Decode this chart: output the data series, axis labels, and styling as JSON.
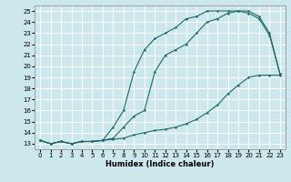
{
  "xlabel": "Humidex (Indice chaleur)",
  "ylabel": "",
  "bg_color": "#cce8ec",
  "grid_color": "#b0d8de",
  "line_color": "#1a6b60",
  "xlim": [
    -0.5,
    23.5
  ],
  "ylim": [
    12.5,
    25.5
  ],
  "xticks": [
    0,
    1,
    2,
    3,
    4,
    5,
    6,
    7,
    8,
    9,
    10,
    11,
    12,
    13,
    14,
    15,
    16,
    17,
    18,
    19,
    20,
    21,
    22,
    23
  ],
  "yticks": [
    13,
    14,
    15,
    16,
    17,
    18,
    19,
    20,
    21,
    22,
    23,
    24,
    25
  ],
  "series1_x": [
    0,
    1,
    2,
    3,
    4,
    5,
    6,
    7,
    8,
    9,
    10,
    11,
    12,
    13,
    14,
    15,
    16,
    17,
    18,
    19,
    20,
    21,
    22,
    23
  ],
  "series1_y": [
    13.3,
    13.0,
    13.2,
    13.0,
    13.2,
    13.2,
    13.3,
    14.5,
    16.0,
    19.5,
    21.5,
    22.5,
    23.0,
    23.5,
    24.3,
    24.5,
    25.0,
    25.0,
    25.0,
    25.0,
    25.0,
    24.5,
    23.0,
    19.3
  ],
  "series2_x": [
    0,
    1,
    2,
    3,
    4,
    5,
    6,
    7,
    8,
    9,
    10,
    11,
    12,
    13,
    14,
    15,
    16,
    17,
    18,
    19,
    20,
    21,
    22,
    23
  ],
  "series2_y": [
    13.3,
    13.0,
    13.2,
    13.0,
    13.2,
    13.2,
    13.3,
    13.5,
    14.5,
    15.5,
    16.0,
    19.5,
    21.0,
    21.5,
    22.0,
    23.0,
    24.0,
    24.3,
    24.8,
    25.0,
    24.8,
    24.3,
    22.8,
    19.3
  ],
  "series3_x": [
    0,
    1,
    2,
    3,
    4,
    5,
    6,
    7,
    8,
    9,
    10,
    11,
    12,
    13,
    14,
    15,
    16,
    17,
    18,
    19,
    20,
    21,
    22,
    23
  ],
  "series3_y": [
    13.3,
    13.0,
    13.2,
    13.0,
    13.2,
    13.2,
    13.3,
    13.4,
    13.5,
    13.8,
    14.0,
    14.2,
    14.3,
    14.5,
    14.8,
    15.2,
    15.8,
    16.5,
    17.5,
    18.3,
    19.0,
    19.2,
    19.2,
    19.2
  ]
}
